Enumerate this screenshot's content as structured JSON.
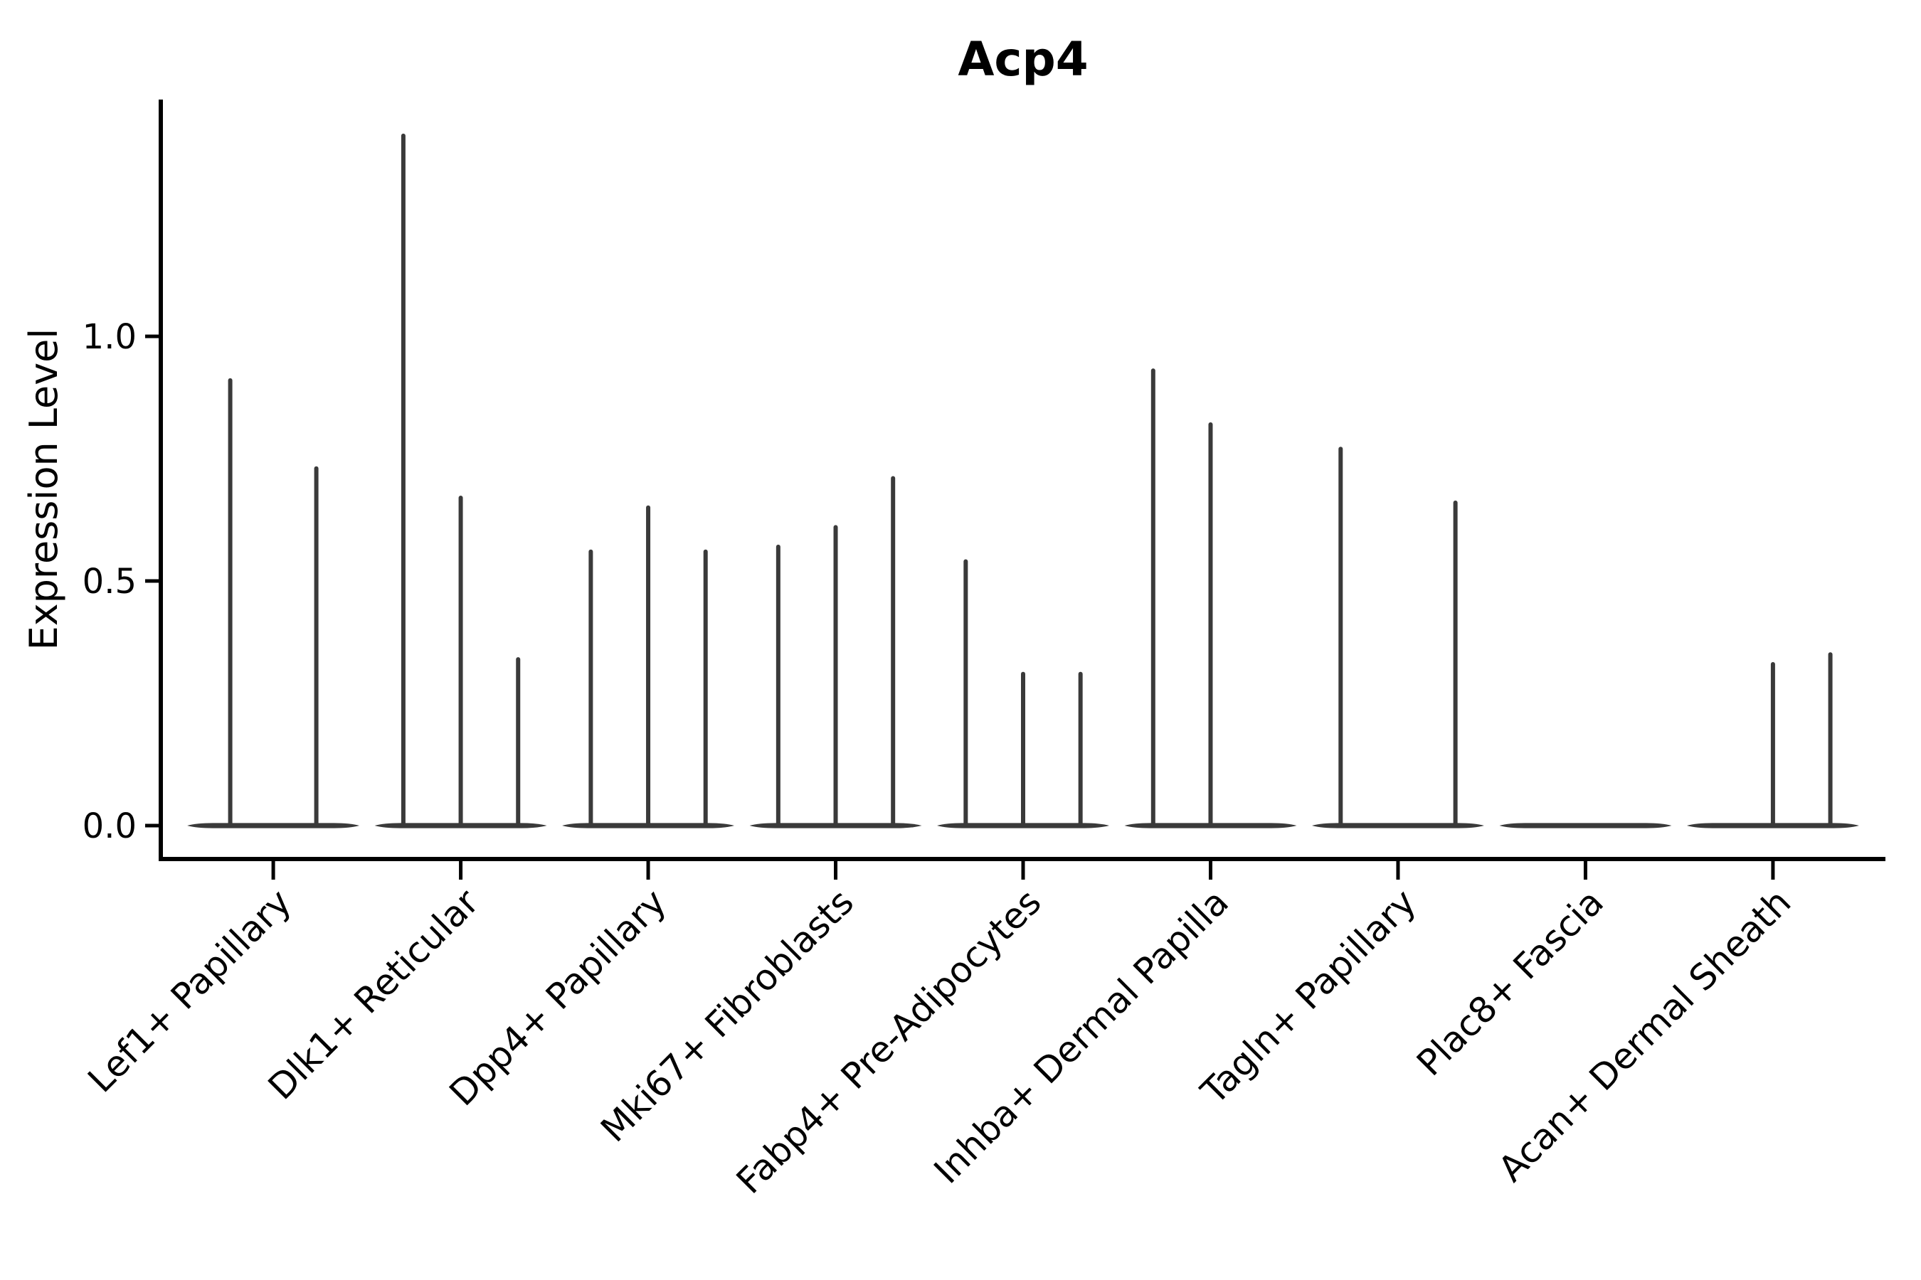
{
  "chart_data": {
    "type": "violin",
    "title": "Acp4",
    "xlabel": "",
    "ylabel": "Expression Level",
    "yticks": [
      "0.0",
      "0.5",
      "1.0"
    ],
    "ytick_values": [
      0.0,
      0.5,
      1.0
    ],
    "ylim": [
      0.0,
      1.48
    ],
    "grid": false,
    "legend": "none",
    "violin_color": "#3a3a3a",
    "axis_color": "#000000",
    "note": "Seurat-style stacked violin of gene expression; violins are flattened at 0 with thin density spikes up to the max expressed value. Each category holds 2-3 sub-violins (dodged); 0 = flat violin with no spike.",
    "categories": [
      "Lef1+ Papillary",
      "Dlk1+ Reticular",
      "Dpp4+ Papillary",
      "Mki67+ Fibroblasts",
      "Fabp4+ Pre-Adipocytes",
      "Inhba+ Dermal Papilla",
      "Tagln+ Papillary",
      "Plac8+ Fascia",
      "Acan+ Dermal Sheath"
    ],
    "series": [
      {
        "category": "Lef1+ Papillary",
        "violin_maxes": [
          0.91,
          0.73
        ]
      },
      {
        "category": "Dlk1+ Reticular",
        "violin_maxes": [
          1.41,
          0.67,
          0.34
        ]
      },
      {
        "category": "Dpp4+ Papillary",
        "violin_maxes": [
          0.56,
          0.65,
          0.56
        ]
      },
      {
        "category": "Mki67+ Fibroblasts",
        "violin_maxes": [
          0.57,
          0.61,
          0.71
        ]
      },
      {
        "category": "Fabp4+ Pre-Adipocytes",
        "violin_maxes": [
          0.54,
          0.31,
          0.31
        ]
      },
      {
        "category": "Inhba+ Dermal Papilla",
        "violin_maxes": [
          0.93,
          0.82,
          0
        ]
      },
      {
        "category": "Tagln+ Papillary",
        "violin_maxes": [
          0.77,
          0,
          0.66
        ]
      },
      {
        "category": "Plac8+ Fascia",
        "violin_maxes": [
          0,
          0,
          0
        ]
      },
      {
        "category": "Acan+ Dermal Sheath",
        "violin_maxes": [
          0,
          0.33,
          0.35
        ]
      }
    ]
  }
}
